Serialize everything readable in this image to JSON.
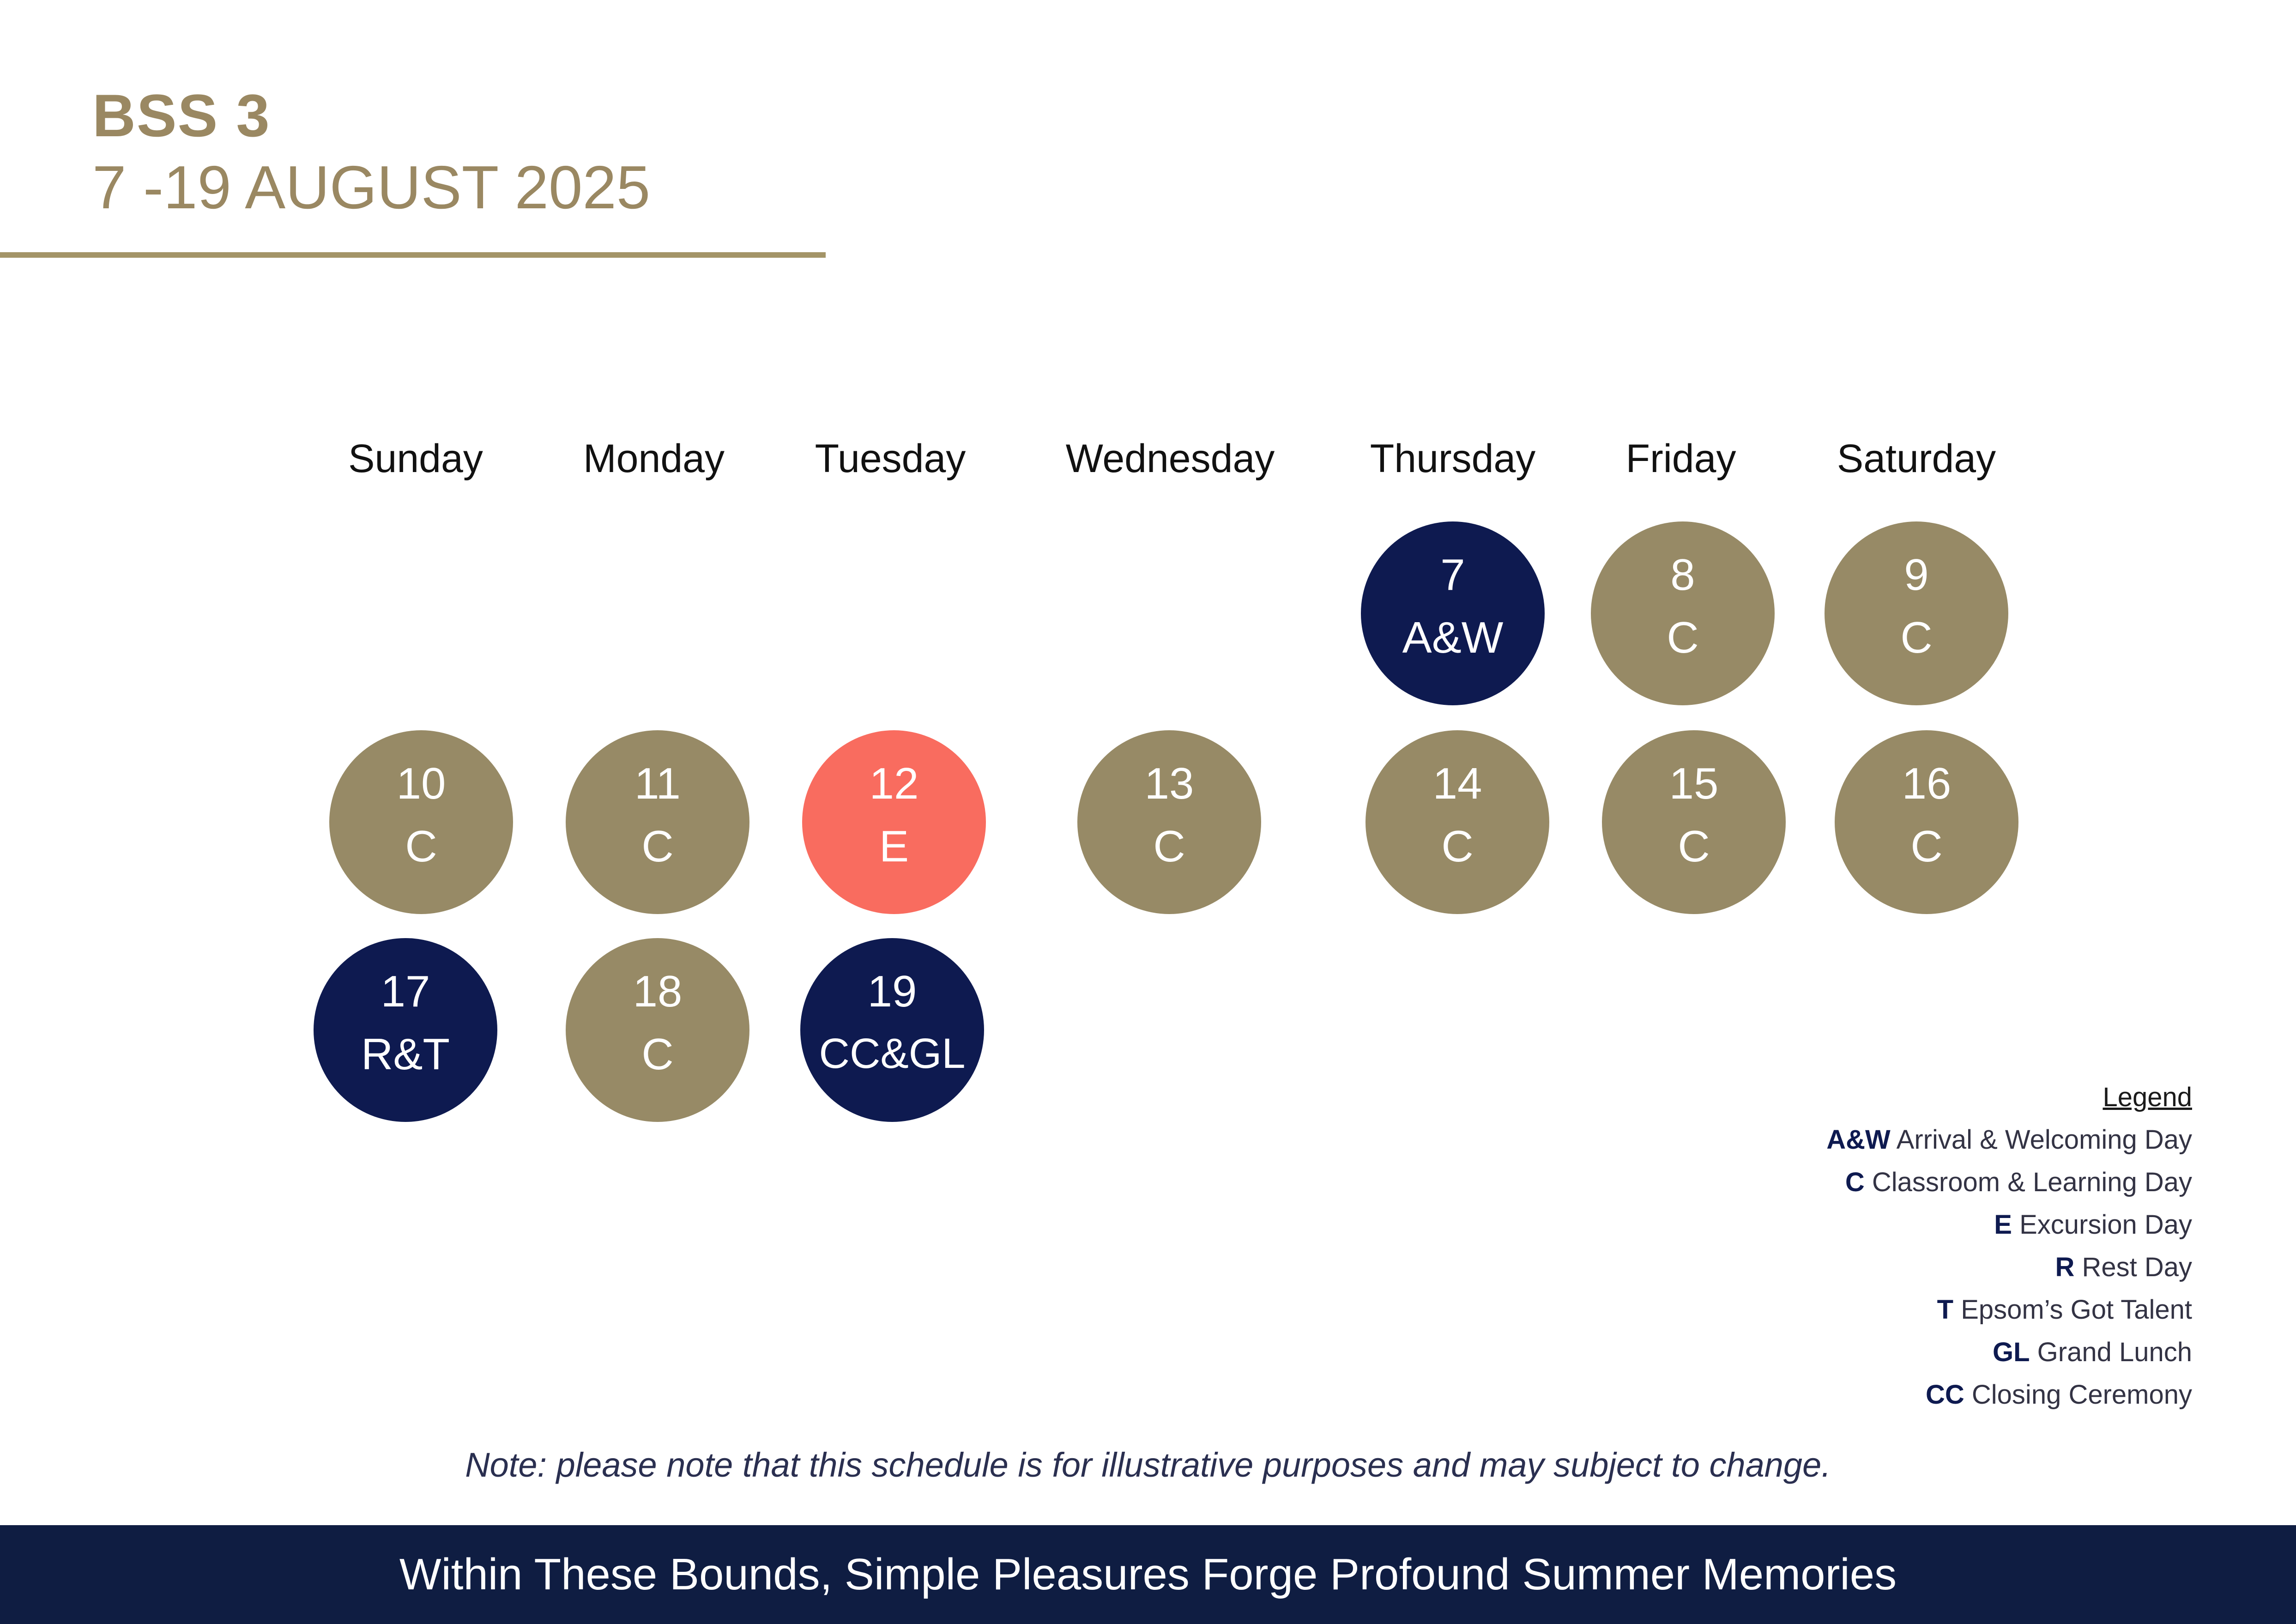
{
  "header": {
    "title": "BSS 3",
    "dates": "7 -19 AUGUST 2025"
  },
  "colors": {
    "gold": "#978a66",
    "navy": "#0e1a50",
    "coral": "#f96c5f",
    "footer_navy": "#0f1d42"
  },
  "weekdays": [
    "Sunday",
    "Monday",
    "Tuesday",
    "Wednesday",
    "Thursday",
    "Friday",
    "Saturday"
  ],
  "days": [
    {
      "num": "7",
      "code": "A&W",
      "type": "navy"
    },
    {
      "num": "8",
      "code": "C",
      "type": "gold"
    },
    {
      "num": "9",
      "code": "C",
      "type": "gold"
    },
    {
      "num": "10",
      "code": "C",
      "type": "gold"
    },
    {
      "num": "11",
      "code": "C",
      "type": "gold"
    },
    {
      "num": "12",
      "code": "E",
      "type": "coral"
    },
    {
      "num": "13",
      "code": "C",
      "type": "gold"
    },
    {
      "num": "14",
      "code": "C",
      "type": "gold"
    },
    {
      "num": "15",
      "code": "C",
      "type": "gold"
    },
    {
      "num": "16",
      "code": "C",
      "type": "gold"
    },
    {
      "num": "17",
      "code": "R&T",
      "type": "navy"
    },
    {
      "num": "18",
      "code": "C",
      "type": "gold"
    },
    {
      "num": "19",
      "code": "CC&GL",
      "type": "navy"
    }
  ],
  "legend": {
    "title": "Legend",
    "items": [
      {
        "code": "A&W",
        "label": "Arrival & Welcoming Day"
      },
      {
        "code": "C",
        "label": "Classroom & Learning Day"
      },
      {
        "code": "E",
        "label": "Excursion Day"
      },
      {
        "code": "R",
        "label": "Rest Day"
      },
      {
        "code": "T",
        "label": "Epsom’s Got Talent"
      },
      {
        "code": "GL",
        "label": "Grand Lunch"
      },
      {
        "code": "CC",
        "label": "Closing Ceremony"
      }
    ]
  },
  "note": "Note: please note that this schedule is for illustrative purposes and may subject to change.",
  "footer": {
    "tagline": "Within These Bounds, Simple Pleasures Forge Profound Summer Memories"
  }
}
